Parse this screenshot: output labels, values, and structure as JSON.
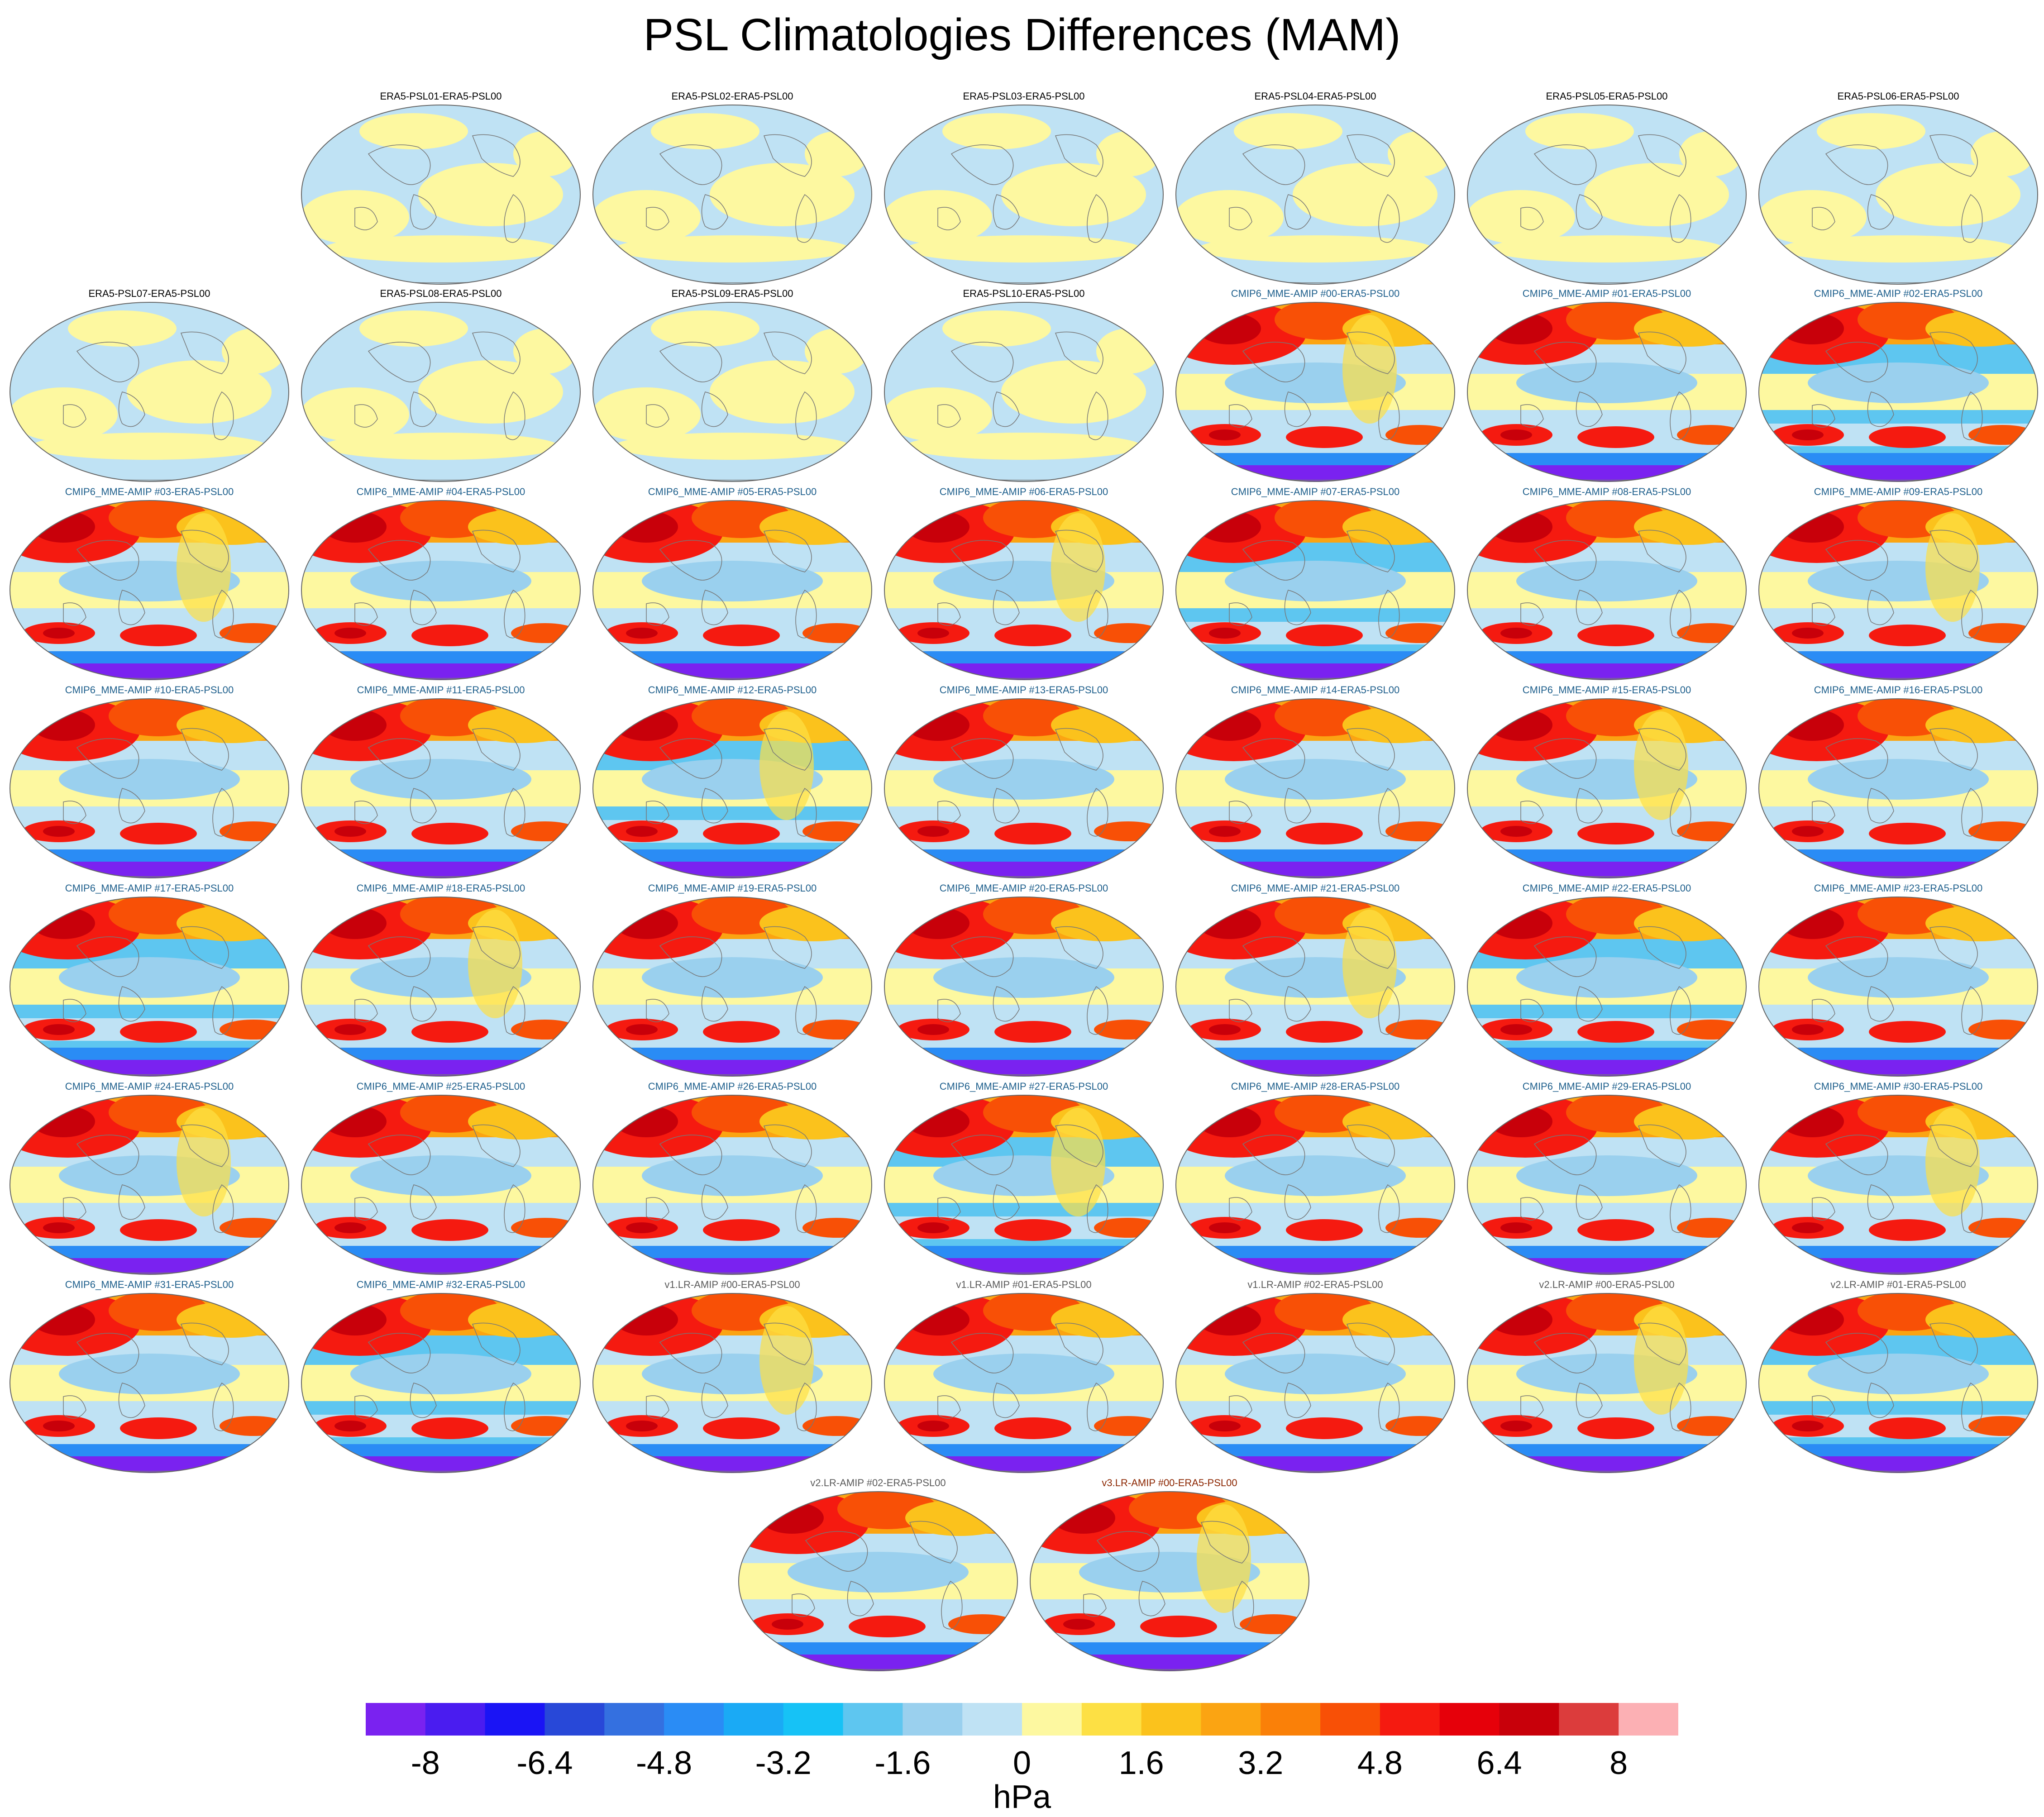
{
  "title": "PSL Climatologies Differences (MAM)",
  "colorbar": {
    "units": "hPa",
    "tick_labels": [
      "-8",
      "-6.4",
      "-4.8",
      "-3.2",
      "-1.6",
      "0",
      "1.6",
      "3.2",
      "4.8",
      "6.4",
      "8"
    ],
    "colors": [
      "#7a22f0",
      "#4a1cf0",
      "#1a14f5",
      "#2848d8",
      "#3470e0",
      "#2a8cf5",
      "#1aaaf5",
      "#16c2f6",
      "#5ec6f0",
      "#9ad0ee",
      "#bfe2f4",
      "#fdf8a0",
      "#fde044",
      "#fbc21c",
      "#fba412",
      "#fa8008",
      "#f85006",
      "#f51a10",
      "#e6000a",
      "#c8000a",
      "#dc3c3c",
      "#fcb0b4"
    ]
  },
  "chart_data": {
    "type": "heatmap",
    "title": "PSL Climatologies Differences (MAM)",
    "units": "hPa",
    "levels": [
      -8,
      -7.2,
      -6.4,
      -5.6,
      -4.8,
      -4.0,
      -3.2,
      -2.4,
      -1.6,
      -0.8,
      0,
      0.8,
      1.6,
      2.4,
      3.2,
      4.0,
      4.8,
      5.6,
      6.4,
      7.2,
      8
    ],
    "panels": [
      {
        "title": "ERA5-PSL01-ERA5-PSL00",
        "group": "era5"
      },
      {
        "title": "ERA5-PSL02-ERA5-PSL00",
        "group": "era5"
      },
      {
        "title": "ERA5-PSL03-ERA5-PSL00",
        "group": "era5"
      },
      {
        "title": "ERA5-PSL04-ERA5-PSL00",
        "group": "era5"
      },
      {
        "title": "ERA5-PSL05-ERA5-PSL00",
        "group": "era5"
      },
      {
        "title": "ERA5-PSL06-ERA5-PSL00",
        "group": "era5"
      },
      {
        "title": "ERA5-PSL07-ERA5-PSL00",
        "group": "era5"
      },
      {
        "title": "ERA5-PSL08-ERA5-PSL00",
        "group": "era5"
      },
      {
        "title": "ERA5-PSL09-ERA5-PSL00",
        "group": "era5"
      },
      {
        "title": "ERA5-PSL10-ERA5-PSL00",
        "group": "era5"
      },
      {
        "title": "CMIP6_MME-AMIP  #00-ERA5-PSL00",
        "group": "cmip6"
      },
      {
        "title": "CMIP6_MME-AMIP  #01-ERA5-PSL00",
        "group": "cmip6"
      },
      {
        "title": "CMIP6_MME-AMIP  #02-ERA5-PSL00",
        "group": "cmip6"
      },
      {
        "title": "CMIP6_MME-AMIP  #03-ERA5-PSL00",
        "group": "cmip6"
      },
      {
        "title": "CMIP6_MME-AMIP  #04-ERA5-PSL00",
        "group": "cmip6"
      },
      {
        "title": "CMIP6_MME-AMIP  #05-ERA5-PSL00",
        "group": "cmip6"
      },
      {
        "title": "CMIP6_MME-AMIP  #06-ERA5-PSL00",
        "group": "cmip6"
      },
      {
        "title": "CMIP6_MME-AMIP  #07-ERA5-PSL00",
        "group": "cmip6"
      },
      {
        "title": "CMIP6_MME-AMIP  #08-ERA5-PSL00",
        "group": "cmip6"
      },
      {
        "title": "CMIP6_MME-AMIP  #09-ERA5-PSL00",
        "group": "cmip6"
      },
      {
        "title": "CMIP6_MME-AMIP  #10-ERA5-PSL00",
        "group": "cmip6"
      },
      {
        "title": "CMIP6_MME-AMIP  #11-ERA5-PSL00",
        "group": "cmip6"
      },
      {
        "title": "CMIP6_MME-AMIP  #12-ERA5-PSL00",
        "group": "cmip6"
      },
      {
        "title": "CMIP6_MME-AMIP  #13-ERA5-PSL00",
        "group": "cmip6"
      },
      {
        "title": "CMIP6_MME-AMIP  #14-ERA5-PSL00",
        "group": "cmip6"
      },
      {
        "title": "CMIP6_MME-AMIP  #15-ERA5-PSL00",
        "group": "cmip6"
      },
      {
        "title": "CMIP6_MME-AMIP  #16-ERA5-PSL00",
        "group": "cmip6"
      },
      {
        "title": "CMIP6_MME-AMIP  #17-ERA5-PSL00",
        "group": "cmip6"
      },
      {
        "title": "CMIP6_MME-AMIP  #18-ERA5-PSL00",
        "group": "cmip6"
      },
      {
        "title": "CMIP6_MME-AMIP  #19-ERA5-PSL00",
        "group": "cmip6"
      },
      {
        "title": "CMIP6_MME-AMIP  #20-ERA5-PSL00",
        "group": "cmip6"
      },
      {
        "title": "CMIP6_MME-AMIP  #21-ERA5-PSL00",
        "group": "cmip6"
      },
      {
        "title": "CMIP6_MME-AMIP  #22-ERA5-PSL00",
        "group": "cmip6"
      },
      {
        "title": "CMIP6_MME-AMIP  #23-ERA5-PSL00",
        "group": "cmip6"
      },
      {
        "title": "CMIP6_MME-AMIP  #24-ERA5-PSL00",
        "group": "cmip6"
      },
      {
        "title": "CMIP6_MME-AMIP  #25-ERA5-PSL00",
        "group": "cmip6"
      },
      {
        "title": "CMIP6_MME-AMIP  #26-ERA5-PSL00",
        "group": "cmip6"
      },
      {
        "title": "CMIP6_MME-AMIP  #27-ERA5-PSL00",
        "group": "cmip6"
      },
      {
        "title": "CMIP6_MME-AMIP  #28-ERA5-PSL00",
        "group": "cmip6"
      },
      {
        "title": "CMIP6_MME-AMIP  #29-ERA5-PSL00",
        "group": "cmip6"
      },
      {
        "title": "CMIP6_MME-AMIP  #30-ERA5-PSL00",
        "group": "cmip6"
      },
      {
        "title": "CMIP6_MME-AMIP  #31-ERA5-PSL00",
        "group": "cmip6"
      },
      {
        "title": "CMIP6_MME-AMIP  #32-ERA5-PSL00",
        "group": "cmip6"
      },
      {
        "title": "v1.LR-AMIP  #00-ERA5-PSL00",
        "group": "v1"
      },
      {
        "title": "v1.LR-AMIP  #01-ERA5-PSL00",
        "group": "v1"
      },
      {
        "title": "v1.LR-AMIP  #02-ERA5-PSL00",
        "group": "v1"
      },
      {
        "title": "v2.LR-AMIP  #00-ERA5-PSL00",
        "group": "v2"
      },
      {
        "title": "v2.LR-AMIP  #01-ERA5-PSL00",
        "group": "v2"
      },
      {
        "title": "v2.LR-AMIP  #02-ERA5-PSL00",
        "group": "v2"
      },
      {
        "title": "v3.LR-AMIP  #00-ERA5-PSL00",
        "group": "v3"
      }
    ]
  },
  "group_title_colors": {
    "era5": "#000000",
    "cmip6": "#1e5f8c",
    "v1": "#5a5a5a",
    "v2": "#5a5a5a",
    "v3": "#8b2500"
  }
}
